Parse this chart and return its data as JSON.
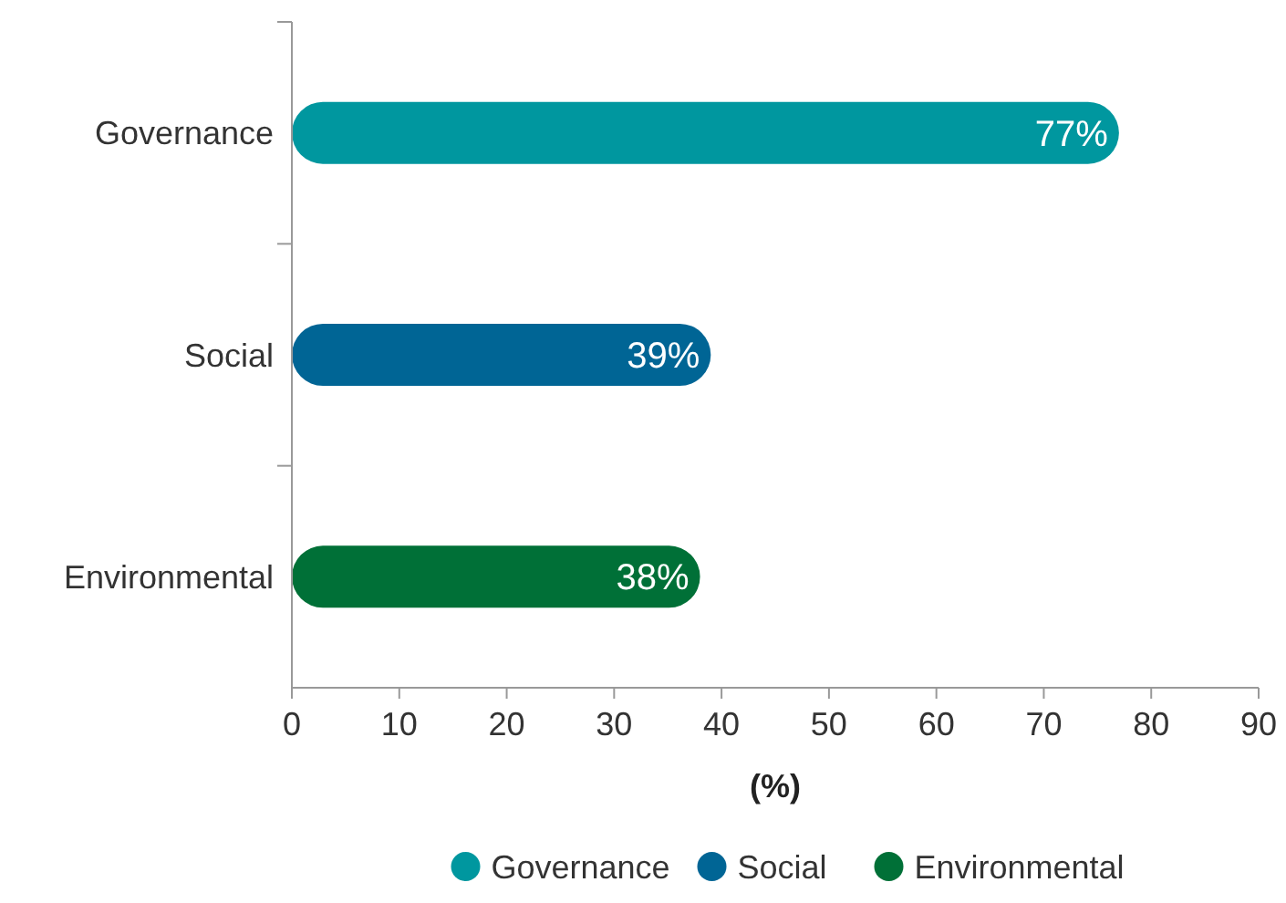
{
  "chart_data": {
    "type": "bar",
    "orientation": "horizontal",
    "xlabel": "(%)",
    "categories": [
      "Governance",
      "Social",
      "Environmental"
    ],
    "series": [
      {
        "name": "Governance",
        "color": "#00979f",
        "values": [
          77,
          null,
          null
        ],
        "value_labels": [
          "77%",
          null,
          null
        ]
      },
      {
        "name": "Social",
        "color": "#006595",
        "values": [
          null,
          39,
          null
        ],
        "value_labels": [
          null,
          "39%",
          null
        ]
      },
      {
        "name": "Environmental",
        "color": "#007037",
        "values": [
          null,
          null,
          38
        ],
        "value_labels": [
          null,
          null,
          "38%"
        ]
      }
    ],
    "xlim": [
      0,
      90
    ],
    "xticks": [
      0,
      10,
      20,
      30,
      40,
      50,
      60,
      70,
      80,
      90
    ],
    "grid": false,
    "legend": "bottom"
  }
}
